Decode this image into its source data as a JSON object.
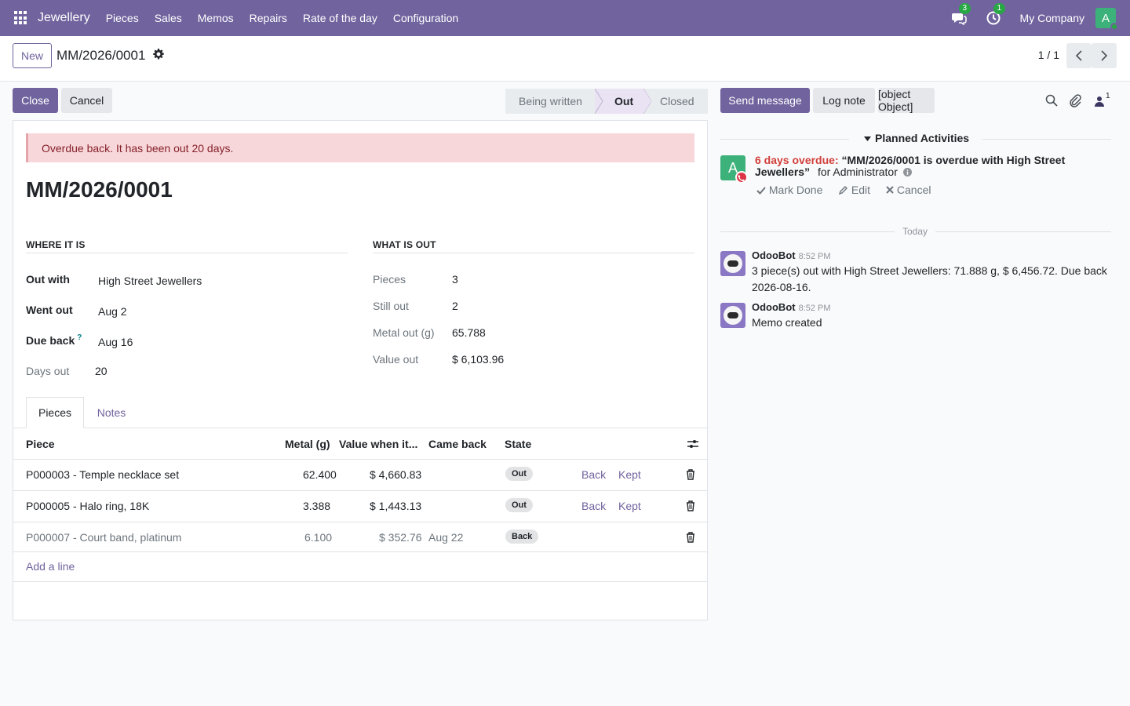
{
  "navbar": {
    "brand": "Jewellery",
    "menu": [
      "Pieces",
      "Sales",
      "Memos",
      "Repairs",
      "Rate of the day",
      "Configuration"
    ],
    "messages_count": "3",
    "activities_count": "1",
    "company": "My Company",
    "avatar_letter": "A"
  },
  "control_panel": {
    "new_label": "New",
    "record_name": "MM/2026/0001",
    "pager": "1 / 1"
  },
  "form_actions": {
    "close_label": "Close",
    "cancel_label": "Cancel"
  },
  "statusbar": {
    "stages": [
      "Being written",
      "Out",
      "Closed"
    ],
    "active_stage": "Out"
  },
  "form": {
    "alert": "Overdue back. It has been out 20 days.",
    "title": "MM/2026/0001",
    "where_group": {
      "title": "WHERE IT IS",
      "out_with_label": "Out with",
      "out_with": "High Street Jewellers",
      "went_out_label": "Went out",
      "went_out": "Aug 2",
      "due_back_label": "Due back",
      "due_back_help": "?",
      "due_back": "Aug 16",
      "days_out_label": "Days out",
      "days_out": "20"
    },
    "what_group": {
      "title": "WHAT IS OUT",
      "pieces_label": "Pieces",
      "pieces": "3",
      "still_out_label": "Still out",
      "still_out": "2",
      "metal_out_label": "Metal out (g)",
      "metal_out": "65.788",
      "value_out_label": "Value out",
      "value_out": "$ 6,103.96"
    },
    "tabs": [
      "Pieces",
      "Notes"
    ],
    "table": {
      "columns": [
        "Piece",
        "Metal (g)",
        "Value when it...",
        "Came back",
        "State"
      ],
      "rows": [
        {
          "piece": "P000003 - Temple necklace set",
          "metal": "62.400",
          "value": "$ 4,660.83",
          "came_back": "",
          "state": "Out",
          "back": "Back",
          "kept": "Kept"
        },
        {
          "piece": "P000005 - Halo ring, 18K",
          "metal": "3.388",
          "value": "$ 1,443.13",
          "came_back": "",
          "state": "Out",
          "back": "Back",
          "kept": "Kept"
        },
        {
          "piece": "P000007 - Court band, platinum",
          "metal": "6.100",
          "value": "$ 352.76",
          "came_back": "Aug 22",
          "state": "Back",
          "back": "",
          "kept": ""
        }
      ],
      "add_line": "Add a line"
    }
  },
  "chatter": {
    "send_message": "Send message",
    "log_note": "Log note",
    "activity": {
      "avatar_letter": "A",
      "overdue": "6 days overdue:",
      "summary": "“MM/2026/0001 is overdue with High Street Jewellers”",
      "assignee": "for Administrator",
      "mark_done": "Mark Done",
      "edit": "Edit",
      "cancel": "Cancel"
    },
    "followers_count": "1",
    "planned_title": "Planned Activities",
    "separator": "Today",
    "messages": [
      {
        "author": "OdooBot",
        "time": "8:52 PM",
        "body": "3 piece(s) out with High Street Jewellers: 71.888 g, $ 6,456.72. Due back 2026-08-16."
      },
      {
        "author": "OdooBot",
        "time": "8:52 PM",
        "body": "Memo created"
      }
    ]
  },
  "colors": {
    "brand": "#71639e",
    "alert_bg": "#f8d7da",
    "overdue": "#d23f3a",
    "success": "#28a745"
  }
}
